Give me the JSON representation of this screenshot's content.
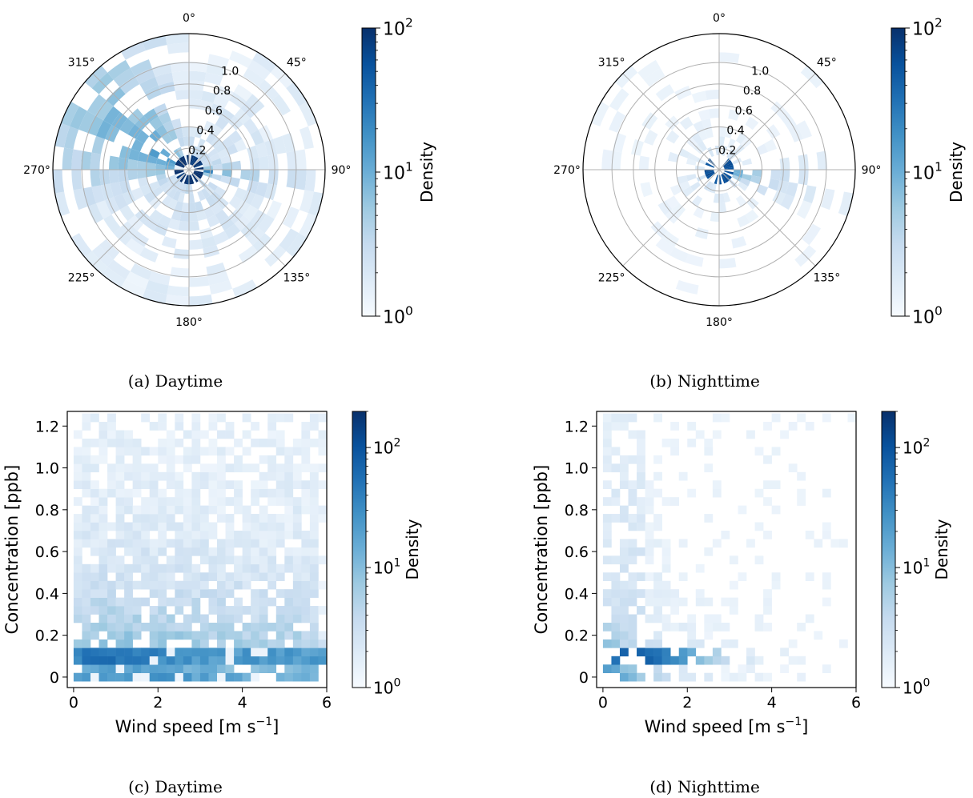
{
  "figure": {
    "panels": [
      {
        "id": "a",
        "caption": "(a) Daytime"
      },
      {
        "id": "b",
        "caption": "(b) Nighttime"
      },
      {
        "id": "c",
        "caption": "(c) Daytime"
      },
      {
        "id": "d",
        "caption": "(d) Nighttime"
      }
    ]
  },
  "chart_data": [
    {
      "type": "heatmap",
      "projection": "polar",
      "panel": "a",
      "angle_ticks": [
        "0°",
        "45°",
        "90°",
        "135°",
        "180°",
        "225°",
        "270°",
        "315°"
      ],
      "radial_ticks": [
        "0.2",
        "0.4",
        "0.6",
        "0.8",
        "1.0"
      ],
      "radial_range": [
        0,
        1.27
      ],
      "colorbar": {
        "label": "Density",
        "scale": "log",
        "range": [
          1,
          100
        ],
        "ticks": [
          "10",
          "10",
          "10"
        ],
        "tick_exponents": [
          "0",
          "1",
          "2"
        ]
      },
      "colormap": [
        "#f7fbff",
        "#deebf7",
        "#c6dbef",
        "#9ecae1",
        "#6baed6",
        "#4292c6",
        "#2171b5",
        "#08519c",
        "#08306b"
      ],
      "seed": 11,
      "profile": "day"
    },
    {
      "type": "heatmap",
      "projection": "polar",
      "panel": "b",
      "angle_ticks": [
        "0°",
        "45°",
        "90°",
        "135°",
        "180°",
        "225°",
        "270°",
        "315°"
      ],
      "radial_ticks": [
        "0.2",
        "0.4",
        "0.6",
        "0.8",
        "1.0"
      ],
      "radial_range": [
        0,
        1.27
      ],
      "colorbar": {
        "label": "Density",
        "scale": "log",
        "range": [
          1,
          100
        ],
        "ticks": [
          "10",
          "10",
          "10"
        ],
        "tick_exponents": [
          "0",
          "1",
          "2"
        ]
      },
      "colormap": [
        "#f7fbff",
        "#deebf7",
        "#c6dbef",
        "#9ecae1",
        "#6baed6",
        "#4292c6",
        "#2171b5",
        "#08519c",
        "#08306b"
      ],
      "seed": 23,
      "profile": "night"
    },
    {
      "type": "heatmap",
      "projection": "cartesian",
      "panel": "c",
      "xlabel": "Wind speed [m s",
      "xlabel_sup": "−1",
      "xlabel_end": "]",
      "ylabel": "Concentration [ppb]",
      "xticks": [
        "0",
        "2",
        "4",
        "6"
      ],
      "yticks": [
        "0",
        "0.2",
        "0.4",
        "0.6",
        "0.8",
        "1.0",
        "1.2"
      ],
      "xlim": [
        -0.15,
        6
      ],
      "ylim": [
        -0.05,
        1.27
      ],
      "colorbar": {
        "label": "Density",
        "scale": "log",
        "range": [
          1,
          200
        ],
        "ticks": [
          "10",
          "10",
          "10"
        ],
        "tick_exponents": [
          "0",
          "1",
          "2"
        ]
      },
      "colormap": [
        "#f7fbff",
        "#deebf7",
        "#c6dbef",
        "#9ecae1",
        "#6baed6",
        "#4292c6",
        "#2171b5",
        "#08519c",
        "#08306b"
      ],
      "seed": 37,
      "profile": "day"
    },
    {
      "type": "heatmap",
      "projection": "cartesian",
      "panel": "d",
      "xlabel": "Wind speed [m s",
      "xlabel_sup": "−1",
      "xlabel_end": "]",
      "ylabel": "Concentration [ppb]",
      "xticks": [
        "0",
        "2",
        "4",
        "6"
      ],
      "yticks": [
        "0",
        "0.2",
        "0.4",
        "0.6",
        "0.8",
        "1.0",
        "1.2"
      ],
      "xlim": [
        -0.15,
        6
      ],
      "ylim": [
        -0.05,
        1.27
      ],
      "colorbar": {
        "label": "Density",
        "scale": "log",
        "range": [
          1,
          200
        ],
        "ticks": [
          "10",
          "10",
          "10"
        ],
        "tick_exponents": [
          "0",
          "1",
          "2"
        ]
      },
      "colormap": [
        "#f7fbff",
        "#deebf7",
        "#c6dbef",
        "#9ecae1",
        "#6baed6",
        "#4292c6",
        "#2171b5",
        "#08519c",
        "#08306b"
      ],
      "seed": 53,
      "profile": "night"
    }
  ]
}
